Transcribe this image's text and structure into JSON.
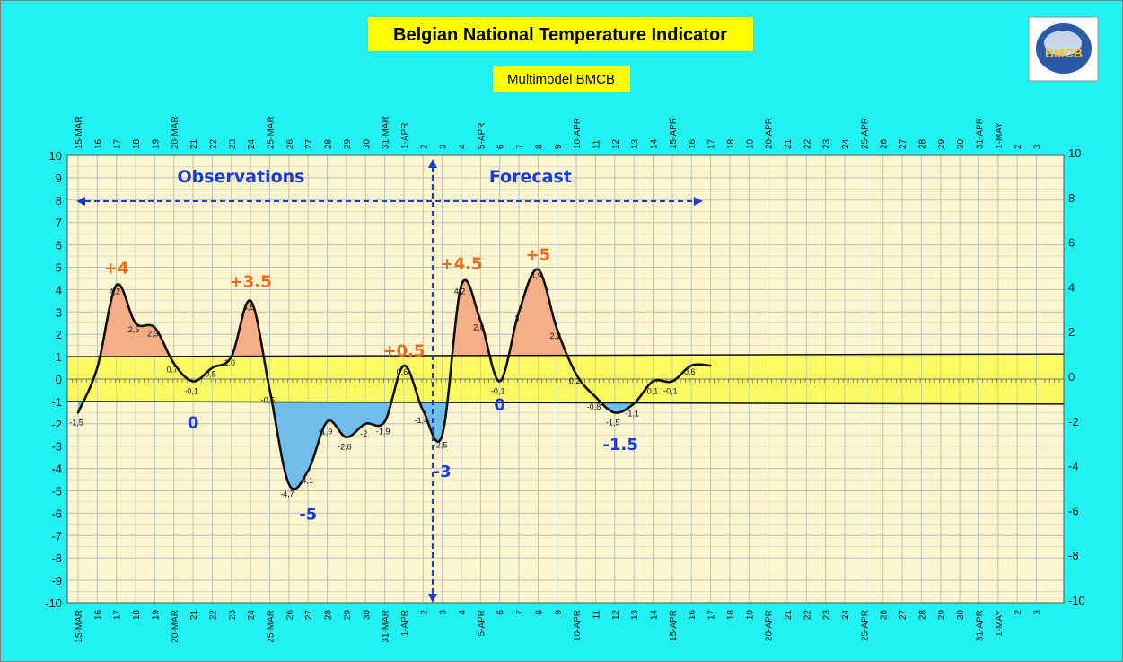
{
  "colors": {
    "background": "#22f1f1",
    "plot_bg": "#fdf4d0",
    "band": "#fbfb56",
    "warm_fill": "#f6ae88",
    "cold_fill": "#6fbdea",
    "title_box": "#ffff00",
    "warm_label": "#f06a1c",
    "cold_label": "#1a3bd6",
    "section_label": "#1a3bd6",
    "grid": "#b7c3bd",
    "curve": "#111111"
  },
  "logo": {
    "text": "BMCB"
  },
  "chart_data": {
    "type": "line",
    "title": "Belgian National Temperature Indicator",
    "subtitle": "Multimodel BMCB",
    "ylim_left": [
      -10,
      10
    ],
    "ylim_right": [
      -10,
      10
    ],
    "yticks_left": [
      "10",
      "9",
      "8",
      "7",
      "6",
      "5",
      "4",
      "3",
      "2",
      "1",
      "0",
      "-1",
      "-2",
      "-3",
      "-4",
      "-5",
      "-6",
      "-7",
      "-8",
      "-9",
      "-10"
    ],
    "yticks_right": [
      "10",
      "8",
      "6",
      "4",
      "2",
      "0",
      "-2",
      "-4",
      "-6",
      "-8",
      "-10"
    ],
    "x_tick_labels": [
      "15-MAR",
      "16",
      "17",
      "18",
      "19",
      "20-MAR",
      "21",
      "22",
      "23",
      "24",
      "25-MAR",
      "26",
      "27",
      "28",
      "29",
      "30",
      "31-MAR",
      "1-APR",
      "2",
      "3",
      "4",
      "5-APR",
      "6",
      "7",
      "8",
      "9",
      "10-APR",
      "11",
      "12",
      "13",
      "14",
      "15-APR",
      "16",
      "17",
      "18",
      "19",
      "20-APR",
      "21",
      "22",
      "23",
      "24",
      "25-APR",
      "26",
      "27",
      "28",
      "29",
      "30",
      "31-APR",
      "1-MAY",
      "2",
      "3"
    ],
    "band": [
      -1,
      1
    ],
    "series": [
      {
        "x": [
          0,
          1,
          2,
          3,
          4,
          5,
          6,
          7,
          8,
          9,
          10,
          11,
          12,
          13,
          14,
          15,
          16,
          17,
          18,
          19,
          20,
          21,
          22,
          23,
          24,
          25,
          26,
          27,
          28,
          29,
          30,
          31,
          32,
          33
        ],
        "values": [
          -1.5,
          0.5,
          4.2,
          2.5,
          2.3,
          0.7,
          -0.1,
          0.5,
          1.0,
          3.5,
          -0.5,
          -4.7,
          -4.1,
          -1.9,
          -2.6,
          -2.0,
          -1.9,
          0.6,
          -1.4,
          -2.5,
          4.2,
          2.6,
          -0.1,
          3.0,
          4.9,
          2.2,
          0.2,
          -0.8,
          -1.5,
          -1.1,
          -0.1,
          -0.1,
          0.6,
          0.6
        ]
      }
    ],
    "point_labels": [
      {
        "x": 0,
        "text": "-1,5"
      },
      {
        "x": 2,
        "text": "4,2"
      },
      {
        "x": 3,
        "text": "2,5"
      },
      {
        "x": 4,
        "text": "2,3"
      },
      {
        "x": 5,
        "text": "0,7"
      },
      {
        "x": 6,
        "text": "-0,1"
      },
      {
        "x": 7,
        "text": "0,5"
      },
      {
        "x": 8,
        "text": "1,0"
      },
      {
        "x": 9,
        "text": "3,5"
      },
      {
        "x": 10,
        "text": "-0,5"
      },
      {
        "x": 11,
        "text": "-4,7"
      },
      {
        "x": 12,
        "text": "-4,1"
      },
      {
        "x": 13,
        "text": "-1,9"
      },
      {
        "x": 14,
        "text": "-2,6"
      },
      {
        "x": 15,
        "text": "-2"
      },
      {
        "x": 16,
        "text": "-1,9"
      },
      {
        "x": 17,
        "text": "0,6"
      },
      {
        "x": 18,
        "text": "-1,4"
      },
      {
        "x": 19,
        "text": "-2,5"
      },
      {
        "x": 20,
        "text": "4,2"
      },
      {
        "x": 21,
        "text": "2,6"
      },
      {
        "x": 22,
        "text": "-0,1"
      },
      {
        "x": 23,
        "text": "3"
      },
      {
        "x": 24,
        "text": "4,9"
      },
      {
        "x": 25,
        "text": "2,2"
      },
      {
        "x": 26,
        "text": "0,2"
      },
      {
        "x": 27,
        "text": "-0,8"
      },
      {
        "x": 28,
        "text": "-1,5"
      },
      {
        "x": 29,
        "text": "-1,1"
      },
      {
        "x": 30,
        "text": "-0,1"
      },
      {
        "x": 31,
        "text": "-0,1"
      },
      {
        "x": 32,
        "text": "0,6"
      }
    ],
    "annotations": [
      {
        "text": "+4",
        "x": 2,
        "y": 5.0,
        "kind": "warm"
      },
      {
        "text": "+3.5",
        "x": 9,
        "y": 4.4,
        "kind": "warm"
      },
      {
        "text": "+0.5",
        "x": 17,
        "y": 1.3,
        "kind": "warm"
      },
      {
        "text": "+4.5",
        "x": 20,
        "y": 5.2,
        "kind": "warm"
      },
      {
        "text": "+5",
        "x": 24,
        "y": 5.6,
        "kind": "warm"
      },
      {
        "text": "0",
        "x": 6,
        "y": -1.9,
        "kind": "cold"
      },
      {
        "text": "-5",
        "x": 12,
        "y": -6.0,
        "kind": "cold"
      },
      {
        "text": "-3",
        "x": 19,
        "y": -4.1,
        "kind": "cold"
      },
      {
        "text": "0",
        "x": 22,
        "y": -1.1,
        "kind": "cold"
      },
      {
        "text": "-1.5",
        "x": 28.3,
        "y": -2.9,
        "kind": "cold"
      }
    ],
    "sections": [
      {
        "text": "Observations",
        "x": 8.5,
        "y": 8.8
      },
      {
        "text": "Forecast",
        "x": 23.6,
        "y": 8.8
      }
    ],
    "divider_x": 18.5,
    "arrow_range": [
      0,
      32.5
    ],
    "grid": true,
    "legend": "none"
  }
}
